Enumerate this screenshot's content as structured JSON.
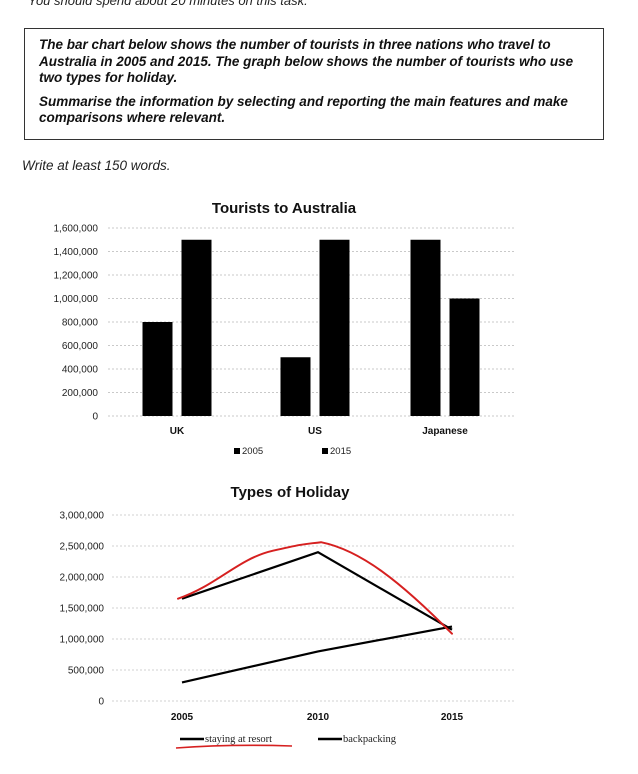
{
  "header": {
    "time_note": "You should spend about 20 minutes on this task."
  },
  "task": {
    "paragraph1": "The bar chart below shows the number of tourists in three nations who travel to Australia in 2005 and 2015. The graph below shows the number of tourists who use two types for holiday.",
    "paragraph2": "Summarise the information by selecting and reporting the main features and make comparisons where relevant."
  },
  "word_note": "Write at least 150 words.",
  "chart_data": [
    {
      "type": "bar",
      "title": "Tourists to Australia",
      "categories": [
        "UK",
        "US",
        "Japanese"
      ],
      "series": [
        {
          "name": "2005",
          "values": [
            800000,
            500000,
            1500000
          ]
        },
        {
          "name": "2015",
          "values": [
            1500000,
            1500000,
            1000000
          ]
        }
      ],
      "ylim": [
        0,
        1600000
      ],
      "yticks": [
        0,
        200000,
        400000,
        600000,
        800000,
        1000000,
        1200000,
        1400000,
        1600000
      ],
      "ytick_labels": [
        "0",
        "200,000",
        "400,000",
        "600,000",
        "800,000",
        "1,000,000",
        "1,200,000",
        "1,400,000",
        "1,600,000"
      ],
      "grid": true,
      "legend": "bottom",
      "colors": {
        "2005": "#000000",
        "2015": "#000000"
      }
    },
    {
      "type": "line",
      "title": "Types of Holiday",
      "x": [
        "2005",
        "2010",
        "2015"
      ],
      "series": [
        {
          "name": "staying at resort",
          "values": [
            1650000,
            2400000,
            1150000
          ]
        },
        {
          "name": "backpacking",
          "values": [
            300000,
            800000,
            1200000
          ]
        }
      ],
      "ylim": [
        0,
        3000000
      ],
      "yticks": [
        0,
        500000,
        1000000,
        1500000,
        2000000,
        2500000,
        3000000
      ],
      "ytick_labels": [
        "0",
        "500,000",
        "1,000,000",
        "1,500,000",
        "2,000,000",
        "2,500,000",
        "3,000,000"
      ],
      "grid": true,
      "legend": "bottom",
      "colors": {
        "staying at resort": "#000000",
        "backpacking": "#000000",
        "annotation": "#d62020"
      }
    }
  ]
}
